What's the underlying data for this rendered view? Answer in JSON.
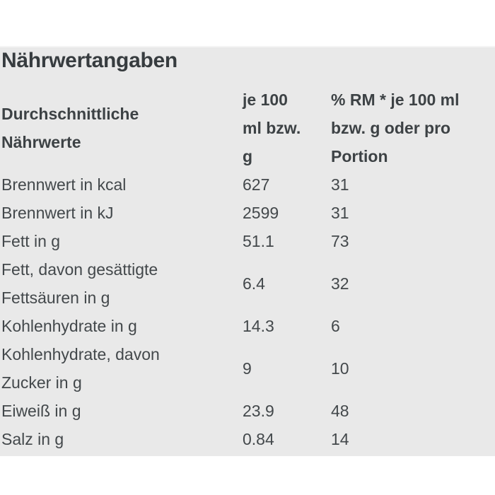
{
  "section": {
    "title": "Nährwertangaben"
  },
  "table": {
    "headers": {
      "avg_nutrients": "Durchschnittliche\nNährwerte",
      "per_100": "je 100\nml bzw.\ng",
      "rm_percent": "% RM * je 100 ml\nbzw. g oder pro\nPortion"
    },
    "rows": [
      {
        "label": "Brennwert in kcal",
        "per_100": "627",
        "rm_percent": "31"
      },
      {
        "label": "Brennwert in kJ",
        "per_100": "2599",
        "rm_percent": "31"
      },
      {
        "label": "Fett in g",
        "per_100": "51.1",
        "rm_percent": "73"
      },
      {
        "label": "Fett, davon gesättigte\nFettsäuren in g",
        "per_100": "6.4",
        "rm_percent": "32"
      },
      {
        "label": "Kohlenhydrate in g",
        "per_100": "14.3",
        "rm_percent": "6"
      },
      {
        "label": "Kohlenhydrate, davon\nZucker in g",
        "per_100": "9",
        "rm_percent": "10"
      },
      {
        "label": "Eiweiß in g",
        "per_100": "23.9",
        "rm_percent": "48"
      },
      {
        "label": "Salz in g",
        "per_100": "0.84",
        "rm_percent": "14"
      }
    ]
  },
  "colors": {
    "panel_background": "#e9e9e9",
    "title_text": "#373c3f",
    "body_text": "#43484b",
    "page_background": "#ffffff"
  }
}
